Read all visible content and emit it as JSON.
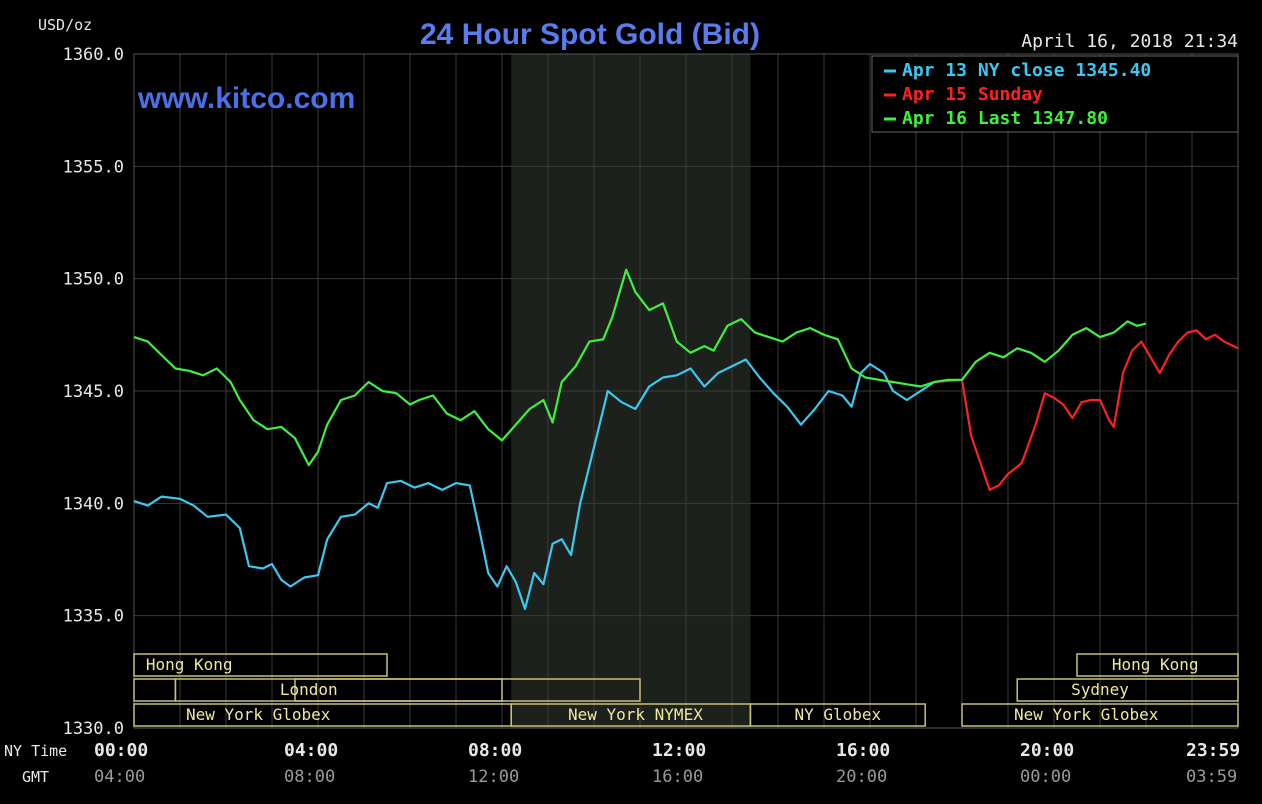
{
  "title": "24 Hour Spot Gold (Bid)",
  "timestamp": "April 16, 2018 21:34",
  "watermark": "www.kitco.com",
  "colors": {
    "background": "#000000",
    "grid": "#3a3a3a",
    "title": "#5b7cf0",
    "nymex_shade": "#1c211c",
    "session_box": "#c8c07a"
  },
  "chart_data": {
    "type": "line",
    "ylabel": "USD/oz",
    "ylim": [
      1330,
      1360
    ],
    "yticks": [
      "1360.0",
      "1355.0",
      "1350.0",
      "1345.0",
      "1340.0",
      "1335.0",
      "1330.0"
    ],
    "x_ny_label": "NY Time",
    "x_gmt_label": "GMT",
    "xticks_ny": [
      "00:00",
      "04:00",
      "08:00",
      "12:00",
      "16:00",
      "20:00",
      "23:59"
    ],
    "xticks_gmt": [
      "04:00",
      "08:00",
      "12:00",
      "16:00",
      "20:00",
      "00:00",
      "03:59"
    ],
    "xlim_hours": [
      0,
      24
    ],
    "grid": true,
    "legend_position": "top-right",
    "legend": [
      {
        "label": "Apr 13 NY close 1345.40",
        "color": "#3cc8f0"
      },
      {
        "label": "Apr 15 Sunday",
        "color": "#ff2020"
      },
      {
        "label": "Apr 16 Last 1347.80",
        "color": "#40f040"
      }
    ],
    "series": [
      {
        "name": "Apr 13 NY close 1345.40",
        "color": "#3cc8f0",
        "points": [
          [
            0,
            1340.1
          ],
          [
            0.3,
            1339.9
          ],
          [
            0.6,
            1340.3
          ],
          [
            1.0,
            1340.2
          ],
          [
            1.3,
            1339.9
          ],
          [
            1.6,
            1339.4
          ],
          [
            2.0,
            1339.5
          ],
          [
            2.3,
            1338.9
          ],
          [
            2.5,
            1337.2
          ],
          [
            2.8,
            1337.1
          ],
          [
            3.0,
            1337.3
          ],
          [
            3.2,
            1336.6
          ],
          [
            3.4,
            1336.3
          ],
          [
            3.7,
            1336.7
          ],
          [
            4.0,
            1336.8
          ],
          [
            4.2,
            1338.4
          ],
          [
            4.5,
            1339.4
          ],
          [
            4.8,
            1339.5
          ],
          [
            5.1,
            1340.0
          ],
          [
            5.3,
            1339.8
          ],
          [
            5.5,
            1340.9
          ],
          [
            5.8,
            1341.0
          ],
          [
            6.1,
            1340.7
          ],
          [
            6.4,
            1340.9
          ],
          [
            6.7,
            1340.6
          ],
          [
            7.0,
            1340.9
          ],
          [
            7.3,
            1340.8
          ],
          [
            7.5,
            1338.9
          ],
          [
            7.7,
            1336.9
          ],
          [
            7.9,
            1336.3
          ],
          [
            8.1,
            1337.2
          ],
          [
            8.3,
            1336.5
          ],
          [
            8.5,
            1335.3
          ],
          [
            8.7,
            1336.9
          ],
          [
            8.9,
            1336.4
          ],
          [
            9.1,
            1338.2
          ],
          [
            9.3,
            1338.4
          ],
          [
            9.5,
            1337.7
          ],
          [
            9.7,
            1340.0
          ],
          [
            10.0,
            1342.5
          ],
          [
            10.3,
            1345.0
          ],
          [
            10.6,
            1344.5
          ],
          [
            10.9,
            1344.2
          ],
          [
            11.2,
            1345.2
          ],
          [
            11.5,
            1345.6
          ],
          [
            11.8,
            1345.7
          ],
          [
            12.1,
            1346.0
          ],
          [
            12.4,
            1345.2
          ],
          [
            12.7,
            1345.8
          ],
          [
            13.0,
            1346.1
          ],
          [
            13.3,
            1346.4
          ],
          [
            13.6,
            1345.6
          ],
          [
            13.9,
            1344.9
          ],
          [
            14.2,
            1344.3
          ],
          [
            14.5,
            1343.5
          ],
          [
            14.8,
            1344.2
          ],
          [
            15.1,
            1345.0
          ],
          [
            15.4,
            1344.8
          ],
          [
            15.6,
            1344.3
          ],
          [
            15.8,
            1345.8
          ],
          [
            16.0,
            1346.2
          ],
          [
            16.3,
            1345.8
          ],
          [
            16.5,
            1345.0
          ],
          [
            16.8,
            1344.6
          ],
          [
            17.1,
            1345.0
          ],
          [
            17.4,
            1345.4
          ]
        ]
      },
      {
        "name": "Apr 15 Sunday",
        "color": "#ff2020",
        "points": [
          [
            17.4,
            1345.4
          ],
          [
            18.0,
            1345.5
          ],
          [
            18.2,
            1343.0
          ],
          [
            18.4,
            1341.8
          ],
          [
            18.6,
            1340.6
          ],
          [
            18.8,
            1340.8
          ],
          [
            19.0,
            1341.3
          ],
          [
            19.3,
            1341.8
          ],
          [
            19.6,
            1343.5
          ],
          [
            19.8,
            1344.9
          ],
          [
            20.0,
            1344.7
          ],
          [
            20.2,
            1344.4
          ],
          [
            20.4,
            1343.8
          ],
          [
            20.6,
            1344.5
          ],
          [
            20.8,
            1344.6
          ],
          [
            21.0,
            1344.6
          ],
          [
            21.2,
            1343.7
          ],
          [
            21.3,
            1343.4
          ],
          [
            21.5,
            1345.8
          ],
          [
            21.7,
            1346.8
          ],
          [
            21.9,
            1347.2
          ],
          [
            22.1,
            1346.5
          ],
          [
            22.3,
            1345.8
          ],
          [
            22.5,
            1346.6
          ],
          [
            22.7,
            1347.2
          ],
          [
            22.9,
            1347.6
          ],
          [
            23.1,
            1347.7
          ],
          [
            23.3,
            1347.3
          ],
          [
            23.5,
            1347.5
          ],
          [
            23.7,
            1347.2
          ],
          [
            24.0,
            1346.9
          ]
        ]
      },
      {
        "name": "Apr 16 Last 1347.80",
        "color": "#40f040",
        "points": [
          [
            0,
            1347.4
          ],
          [
            0.3,
            1347.2
          ],
          [
            0.6,
            1346.6
          ],
          [
            0.9,
            1346.0
          ],
          [
            1.2,
            1345.9
          ],
          [
            1.5,
            1345.7
          ],
          [
            1.8,
            1346.0
          ],
          [
            2.1,
            1345.4
          ],
          [
            2.3,
            1344.6
          ],
          [
            2.6,
            1343.7
          ],
          [
            2.9,
            1343.3
          ],
          [
            3.2,
            1343.4
          ],
          [
            3.5,
            1342.9
          ],
          [
            3.8,
            1341.7
          ],
          [
            4.0,
            1342.3
          ],
          [
            4.2,
            1343.5
          ],
          [
            4.5,
            1344.6
          ],
          [
            4.8,
            1344.8
          ],
          [
            5.1,
            1345.4
          ],
          [
            5.4,
            1345.0
          ],
          [
            5.7,
            1344.9
          ],
          [
            6.0,
            1344.4
          ],
          [
            6.2,
            1344.6
          ],
          [
            6.5,
            1344.8
          ],
          [
            6.8,
            1344.0
          ],
          [
            7.1,
            1343.7
          ],
          [
            7.4,
            1344.1
          ],
          [
            7.7,
            1343.3
          ],
          [
            8.0,
            1342.8
          ],
          [
            8.3,
            1343.5
          ],
          [
            8.6,
            1344.2
          ],
          [
            8.9,
            1344.6
          ],
          [
            9.1,
            1343.6
          ],
          [
            9.3,
            1345.4
          ],
          [
            9.6,
            1346.1
          ],
          [
            9.9,
            1347.2
          ],
          [
            10.2,
            1347.3
          ],
          [
            10.4,
            1348.3
          ],
          [
            10.7,
            1350.4
          ],
          [
            10.9,
            1349.4
          ],
          [
            11.2,
            1348.6
          ],
          [
            11.5,
            1348.9
          ],
          [
            11.8,
            1347.2
          ],
          [
            12.1,
            1346.7
          ],
          [
            12.4,
            1347.0
          ],
          [
            12.6,
            1346.8
          ],
          [
            12.9,
            1347.9
          ],
          [
            13.2,
            1348.2
          ],
          [
            13.5,
            1347.6
          ],
          [
            13.8,
            1347.4
          ],
          [
            14.1,
            1347.2
          ],
          [
            14.4,
            1347.6
          ],
          [
            14.7,
            1347.8
          ],
          [
            15.0,
            1347.5
          ],
          [
            15.3,
            1347.3
          ],
          [
            15.6,
            1346.0
          ],
          [
            15.9,
            1345.6
          ],
          [
            16.2,
            1345.5
          ],
          [
            16.5,
            1345.4
          ],
          [
            16.8,
            1345.3
          ],
          [
            17.1,
            1345.2
          ],
          [
            17.4,
            1345.4
          ],
          [
            17.7,
            1345.5
          ],
          [
            18.0,
            1345.5
          ],
          [
            18.3,
            1346.3
          ],
          [
            18.6,
            1346.7
          ],
          [
            18.9,
            1346.5
          ],
          [
            19.2,
            1346.9
          ],
          [
            19.5,
            1346.7
          ],
          [
            19.8,
            1346.3
          ],
          [
            20.1,
            1346.8
          ],
          [
            20.4,
            1347.5
          ],
          [
            20.7,
            1347.8
          ],
          [
            21.0,
            1347.4
          ],
          [
            21.3,
            1347.6
          ],
          [
            21.6,
            1348.1
          ],
          [
            21.8,
            1347.9
          ],
          [
            22.0,
            1348.0
          ]
        ]
      }
    ],
    "shaded_region": {
      "label": "New York NYMEX",
      "start_hour": 8.2,
      "end_hour": 13.4
    },
    "sessions": [
      {
        "label": "Hong Kong",
        "start": 0,
        "end": 5.5,
        "row": 0
      },
      {
        "label": "Hong Kong",
        "start": 20.5,
        "end": 24,
        "row": 0
      },
      {
        "label": "",
        "start": 0,
        "end": 0.9,
        "row": 1
      },
      {
        "label": "London",
        "start": 0.9,
        "end": 8.0,
        "row": 1
      },
      {
        "label": "London",
        "start": 3.5,
        "end": 11.0,
        "row": 1
      },
      {
        "label": "Sydney",
        "start": 19.2,
        "end": 24,
        "row": 1
      },
      {
        "label": "New York Globex",
        "start": 0,
        "end": 8.2,
        "row": 2
      },
      {
        "label": "New York NYMEX",
        "start": 8.2,
        "end": 13.4,
        "row": 2
      },
      {
        "label": "NY Globex",
        "start": 13.4,
        "end": 17.2,
        "row": 2
      },
      {
        "label": "New York Globex",
        "start": 18.0,
        "end": 24,
        "row": 2
      }
    ]
  }
}
